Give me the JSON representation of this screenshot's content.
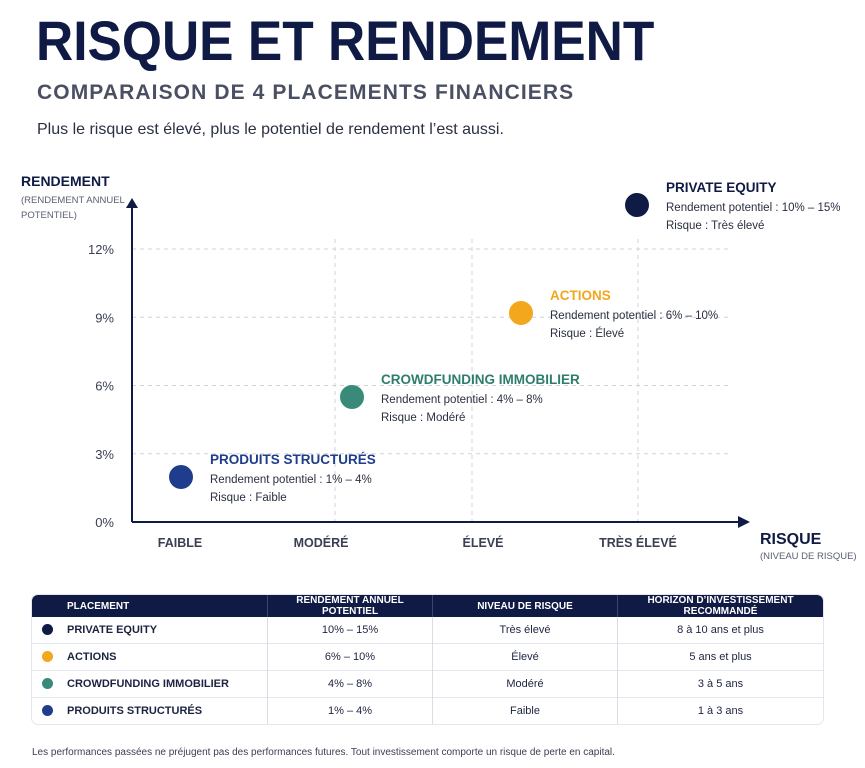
{
  "header": {
    "title": "RISQUE ET RENDEMENT",
    "subtitle": "COMPARAISON DE 4 PLACEMENTS FINANCIERS",
    "intro": "Plus le risque est élevé, plus le potentiel de rendement l’est aussi."
  },
  "chart_data": {
    "type": "scatter",
    "ylabel": "RENDEMENT",
    "ylabel_sub": [
      "(RENDEMENT ANNUEL",
      "POTENTIEL)"
    ],
    "xlabel": "RISQUE",
    "xlabel_sub": "(NIVEAU DE RISQUE)",
    "y_ticks": [
      0,
      3,
      6,
      9,
      12
    ],
    "y_tick_labels": [
      "0%",
      "3%",
      "6%",
      "9%",
      "12%"
    ],
    "ylim": [
      0,
      13.5
    ],
    "x_categories": [
      "FAIBLE",
      "MODÉRÉ",
      "ÉLEVÉ",
      "TRÈS ÉLEVÉ"
    ],
    "grid": true,
    "points": [
      {
        "name": "PRODUITS STRUCTURÉS",
        "x": 0.3,
        "y": 2.0,
        "color": "#1f3d8c",
        "label_color": "#1f3d8c",
        "line1": "Rendement potentiel : 1% – 4%",
        "line2": "Risque : Faible"
      },
      {
        "name": "CROWDFUNDING IMMOBILIER",
        "x": 1.4,
        "y": 5.5,
        "color": "#3a8a7a",
        "label_color": "#2e7d6d",
        "line1": "Rendement potentiel : 4% – 8%",
        "line2": "Risque : Modéré"
      },
      {
        "name": "ACTIONS",
        "x": 2.4,
        "y": 9.0,
        "color": "#f2a71d",
        "label_color": "#f2a71d",
        "line1": "Rendement potentiel : 6% – 10%",
        "line2": "Risque : Élevé"
      },
      {
        "name": "PRIVATE EQUITY",
        "x": 3.1,
        "y": 13.5,
        "color": "#0f1a45",
        "label_color": "#0f1a45",
        "line1": "Rendement potentiel : 10% – 15%",
        "line2": "Risque : Très élevé"
      }
    ]
  },
  "table": {
    "headers": [
      "PLACEMENT",
      "RENDEMENT ANNUEL POTENTIEL",
      "NIVEAU DE RISQUE",
      "HORIZON D’INVESTISSEMENT RECOMMANDÉ"
    ],
    "rows": [
      {
        "name": "PRIVATE EQUITY",
        "rendement": "10% – 15%",
        "risque": "Très élevé",
        "horizon": "8 à 10 ans et plus",
        "color": "#0f1a45"
      },
      {
        "name": "ACTIONS",
        "rendement": "6% – 10%",
        "risque": "Élevé",
        "horizon": "5 ans et plus",
        "color": "#f2a71d"
      },
      {
        "name": "CROWDFUNDING IMMOBILIER",
        "rendement": "4% – 8%",
        "risque": "Modéré",
        "horizon": "3 à 5 ans",
        "color": "#3a8a7a"
      },
      {
        "name": "PRODUITS STRUCTURÉS",
        "rendement": "1% – 4%",
        "risque": "Faible",
        "horizon": "1 à 3 ans",
        "color": "#1f3d8c"
      }
    ]
  },
  "disclaimer": "Les performances passées ne préjugent pas des performances futures. Tout investissement comporte un risque de perte en capital."
}
